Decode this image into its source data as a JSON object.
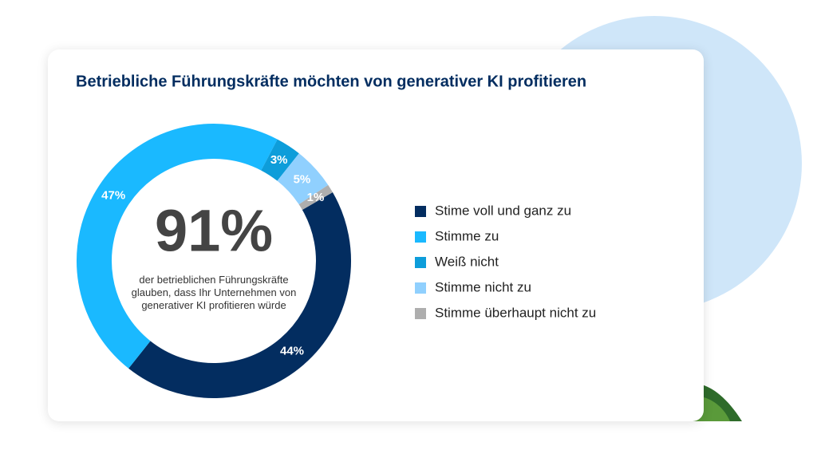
{
  "chart_data": {
    "type": "pie",
    "title": "Betriebliche Führungskräfte möchten von generativer KI profitieren",
    "center_label": "91%",
    "center_text": "der betrieblichen Führungskräfte glauben, dass Ihr Unternehmen von generativer KI profitieren würde",
    "categories": [
      "Stime voll und ganz zu",
      "Stimme zu",
      "Weiß nicht",
      "Stimme nicht zu",
      "Stimme überhaupt nicht zu"
    ],
    "values": [
      44,
      47,
      3,
      5,
      1
    ],
    "value_labels": [
      "44%",
      "47%",
      "3%",
      "5%",
      "1%"
    ],
    "colors": [
      "#032d60",
      "#1ab9ff",
      "#0d9dda",
      "#90d0fe",
      "#aeaeae"
    ],
    "legend": "right"
  }
}
